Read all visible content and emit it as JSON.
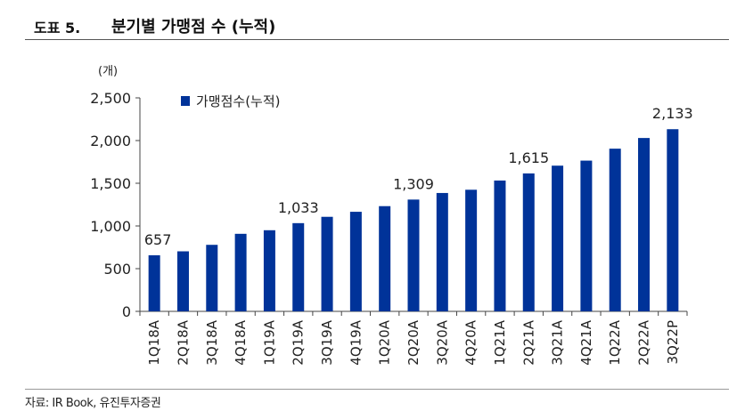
{
  "header": {
    "figure_no": "도표 5.",
    "title": "분기별 가맹점 수 (누적)"
  },
  "source": "자료: IR Book, 유진투자증권",
  "chart_data": {
    "type": "bar",
    "title": "분기별 가맹점 수 (누적)",
    "unit_label": "(개)",
    "categories": [
      "1Q18A",
      "2Q18A",
      "3Q18A",
      "4Q18A",
      "1Q19A",
      "2Q19A",
      "3Q19A",
      "4Q19A",
      "1Q20A",
      "2Q20A",
      "3Q20A",
      "4Q20A",
      "1Q21A",
      "2Q21A",
      "3Q21A",
      "4Q21A",
      "1Q22A",
      "2Q22A",
      "3Q22P"
    ],
    "series": [
      {
        "name": "가맹점수(누적)",
        "values": [
          657,
          703,
          779,
          908,
          950,
          1033,
          1107,
          1166,
          1232,
          1309,
          1386,
          1424,
          1532,
          1615,
          1706,
          1765,
          1905,
          2030,
          2133
        ]
      }
    ],
    "data_labels": {
      "0": "657",
      "5": "1,033",
      "9": "1,309",
      "13": "1,615",
      "18": "2,133"
    },
    "yticks": [
      "0",
      "500",
      "1,000",
      "1,500",
      "2,000",
      "2,500"
    ],
    "ylim": [
      0,
      2500
    ],
    "legend": "top-left",
    "grid": false,
    "colors": {
      "bar": "#003399"
    }
  }
}
